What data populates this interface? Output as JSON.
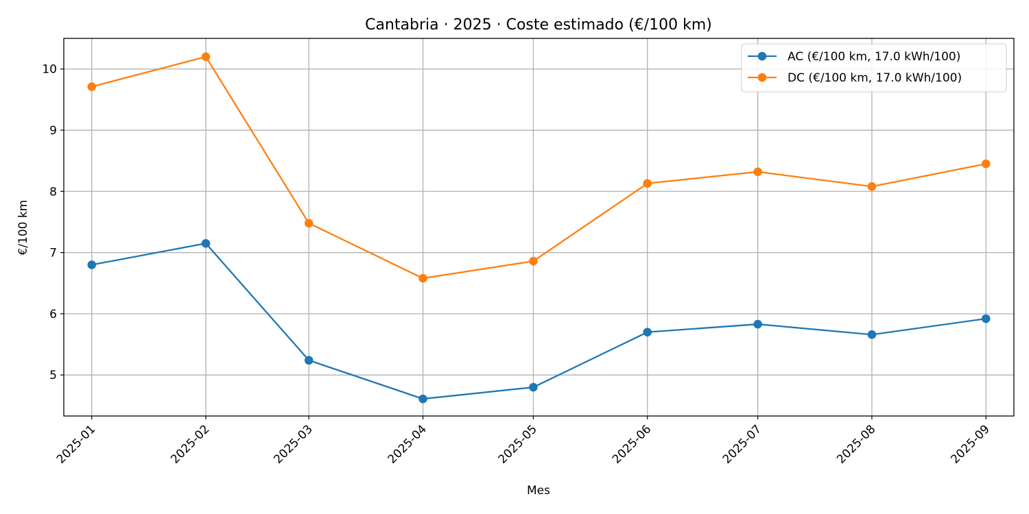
{
  "chart_data": {
    "type": "line",
    "title": "Cantabria · 2025 · Coste estimado (€/100 km)",
    "xlabel": "Mes",
    "ylabel": "€/100 km",
    "categories": [
      "2025-01",
      "2025-02",
      "2025-03",
      "2025-04",
      "2025-05",
      "2025-06",
      "2025-07",
      "2025-08",
      "2025-09"
    ],
    "x_days": [
      1,
      32,
      60,
      91,
      121,
      152,
      182,
      213,
      244
    ],
    "ylim": [
      4.33,
      10.5
    ],
    "yticks": [
      5,
      6,
      7,
      8,
      9,
      10
    ],
    "grid": true,
    "legend_position": "top-right",
    "series": [
      {
        "name": "AC (€/100 km, 17.0 kWh/100)",
        "color": "#1f77b4",
        "values": [
          6.8,
          7.15,
          5.24,
          4.61,
          4.8,
          5.7,
          5.83,
          5.66,
          5.92
        ]
      },
      {
        "name": "DC (€/100 km, 17.0 kWh/100)",
        "color": "#ff7f0e",
        "values": [
          9.71,
          10.2,
          7.48,
          6.58,
          6.86,
          8.13,
          8.32,
          8.08,
          8.45
        ]
      }
    ]
  }
}
